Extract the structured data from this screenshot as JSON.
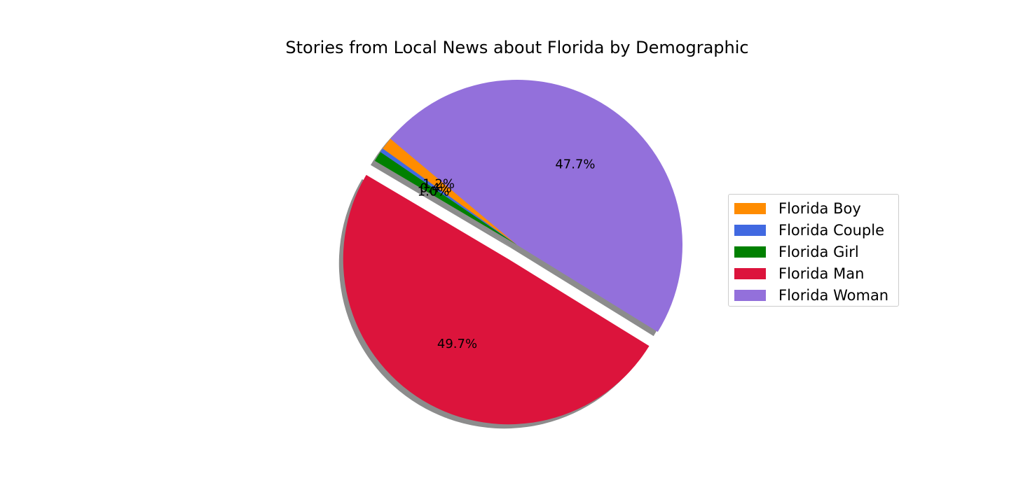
{
  "chart_data": {
    "type": "pie",
    "title": "Stories from Local News about Florida by Demographic",
    "legend_placement": "right",
    "slices": [
      {
        "label": "Florida Boy",
        "value": 1.2,
        "pct_label": "1.2%",
        "color": "#ff8c00"
      },
      {
        "label": "Florida Couple",
        "value": 0.4,
        "pct_label": "0.4%",
        "color": "#4169e1"
      },
      {
        "label": "Florida Girl",
        "value": 1.0,
        "pct_label": "1.0%",
        "color": "#008000"
      },
      {
        "label": "Florida Man",
        "value": 49.7,
        "pct_label": "49.7%",
        "color": "#dc143c",
        "exploded": true
      },
      {
        "label": "Florida Woman",
        "value": 47.7,
        "pct_label": "47.7%",
        "color": "#9370db"
      }
    ],
    "start_angle_deg": 140,
    "shadow": true
  }
}
